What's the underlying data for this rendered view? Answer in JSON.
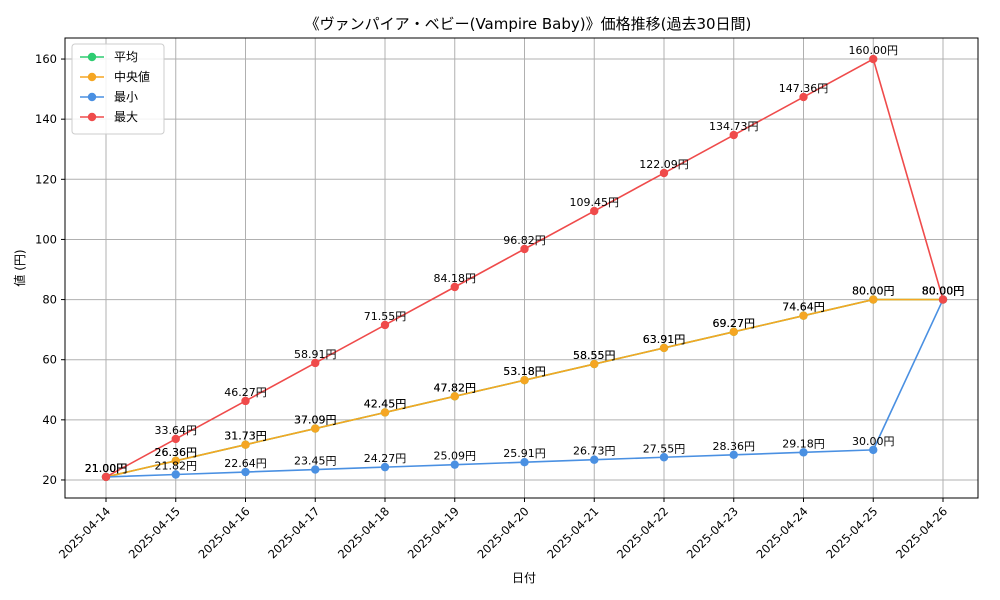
{
  "chart_data": {
    "type": "line",
    "title": "《ヴァンパイア・ベビー(Vampire Baby)》価格推移(過去30日間)",
    "xlabel": "日付",
    "ylabel": "値 (円)",
    "categories": [
      "2025-04-14",
      "2025-04-15",
      "2025-04-16",
      "2025-04-17",
      "2025-04-18",
      "2025-04-19",
      "2025-04-20",
      "2025-04-21",
      "2025-04-22",
      "2025-04-23",
      "2025-04-24",
      "2025-04-25",
      "2025-04-26"
    ],
    "ylim": [
      14,
      167
    ],
    "yticks": [
      20,
      40,
      60,
      80,
      100,
      120,
      140,
      160
    ],
    "grid": true,
    "legend_position": "top-left",
    "label_suffix": "円",
    "series": [
      {
        "name": "平均",
        "color": "#2ecc71",
        "values": [
          21.0,
          26.36,
          31.73,
          37.09,
          42.45,
          47.82,
          53.18,
          58.55,
          63.91,
          69.27,
          74.64,
          80.0,
          80.0
        ]
      },
      {
        "name": "中央値",
        "color": "#f5a623",
        "values": [
          21.0,
          26.36,
          31.73,
          37.09,
          42.45,
          47.82,
          53.18,
          58.55,
          63.91,
          69.27,
          74.64,
          80.0,
          80.0
        ]
      },
      {
        "name": "最小",
        "color": "#4a90e2",
        "values": [
          21.0,
          21.82,
          22.64,
          23.45,
          24.27,
          25.09,
          25.91,
          26.73,
          27.55,
          28.36,
          29.18,
          30.0,
          80.0
        ]
      },
      {
        "name": "最大",
        "color": "#ef4b4b",
        "values": [
          21.0,
          33.64,
          46.27,
          58.91,
          71.55,
          84.18,
          96.82,
          109.45,
          122.09,
          134.73,
          147.36,
          160.0,
          80.0
        ]
      }
    ]
  }
}
